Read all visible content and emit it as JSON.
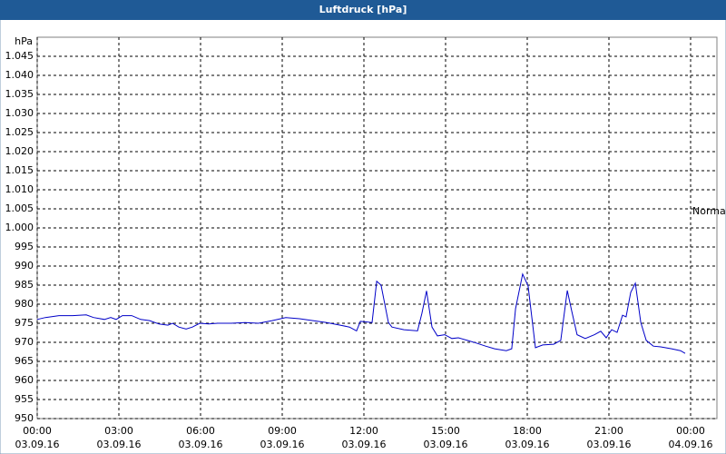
{
  "chart_data": {
    "type": "line",
    "title": "Luftdruck [hPa]",
    "y_unit": "hPa",
    "annotation": "Normal",
    "ylim": [
      950,
      1050
    ],
    "yticks": [
      950,
      955,
      960,
      965,
      970,
      975,
      980,
      985,
      990,
      995,
      {
        "value": 1000,
        "label": "1.000"
      },
      {
        "value": 1005,
        "label": "1.005"
      },
      {
        "value": 1010,
        "label": "1.010"
      },
      {
        "value": 1015,
        "label": "1.015"
      },
      {
        "value": 1020,
        "label": "1.020"
      },
      {
        "value": 1025,
        "label": "1.025"
      },
      {
        "value": 1030,
        "label": "1.030"
      },
      {
        "value": 1035,
        "label": "1.035"
      },
      {
        "value": 1040,
        "label": "1.040"
      },
      {
        "value": 1045,
        "label": "1.045"
      }
    ],
    "xlim": [
      0,
      24
    ],
    "xticks": [
      {
        "value": 0,
        "label": "00:00"
      },
      {
        "value": 3,
        "label": "03:00"
      },
      {
        "value": 6,
        "label": "06:00"
      },
      {
        "value": 9,
        "label": "09:00"
      },
      {
        "value": 12,
        "label": "12:00"
      },
      {
        "value": 15,
        "label": "15:00"
      },
      {
        "value": 18,
        "label": "18:00"
      },
      {
        "value": 21,
        "label": "21:00"
      },
      {
        "value": 24,
        "label": "00:00"
      }
    ],
    "xtick_dates": [
      "03.09.16",
      "03.09.16",
      "03.09.16",
      "03.09.16",
      "03.09.16",
      "03.09.16",
      "03.09.16",
      "03.09.16",
      "04.09.16"
    ],
    "grid": true,
    "series": [
      {
        "name": "Luftdruck",
        "color": "#0000c8",
        "x": [
          0,
          0.3,
          0.8,
          1.3,
          1.8,
          2.07,
          2.47,
          2.7,
          2.9,
          3.13,
          3.47,
          3.8,
          4.13,
          4.47,
          4.8,
          4.97,
          5.2,
          5.47,
          5.7,
          5.97,
          6.3,
          6.63,
          7.13,
          7.63,
          8.13,
          8.63,
          9.13,
          9.63,
          10.13,
          10.63,
          11.13,
          11.47,
          11.73,
          11.87,
          12.3,
          12.47,
          12.63,
          12.9,
          13.03,
          13.47,
          13.97,
          14.13,
          14.3,
          14.5,
          14.7,
          14.97,
          15.23,
          15.47,
          15.8,
          16.13,
          16.47,
          16.8,
          17.23,
          17.43,
          17.57,
          17.83,
          18.03,
          18.17,
          18.3,
          18.57,
          18.97,
          19.23,
          19.47,
          19.63,
          19.83,
          20.13,
          20.47,
          20.7,
          20.9,
          21.1,
          21.3,
          21.5,
          21.63,
          21.8,
          21.97,
          22.17,
          22.37,
          22.63,
          22.9,
          23.3,
          23.63,
          23.8
        ],
        "values": [
          976,
          976.5,
          977,
          977,
          977.2,
          976.5,
          976,
          976.5,
          976,
          977,
          977,
          976,
          975.7,
          974.8,
          974.5,
          975,
          974,
          973.5,
          974,
          975,
          974.8,
          975,
          975,
          975.2,
          975,
          975.7,
          976.5,
          976.2,
          975.7,
          975.2,
          974.5,
          974,
          973,
          975.5,
          975.2,
          986,
          985,
          975.2,
          974,
          973.3,
          973,
          977.6,
          983.5,
          974,
          971.7,
          972,
          971,
          971.2,
          970.5,
          969.8,
          969,
          968.3,
          967.8,
          968.3,
          978.8,
          987.9,
          984.8,
          976.4,
          968.6,
          969.3,
          969.5,
          970.5,
          983.6,
          978.3,
          972,
          971,
          972,
          972.9,
          971.2,
          973.3,
          972.6,
          977.1,
          976.7,
          983.1,
          985.5,
          975.2,
          970.5,
          969,
          968.8,
          968.3,
          967.8,
          967.1
        ]
      }
    ]
  }
}
